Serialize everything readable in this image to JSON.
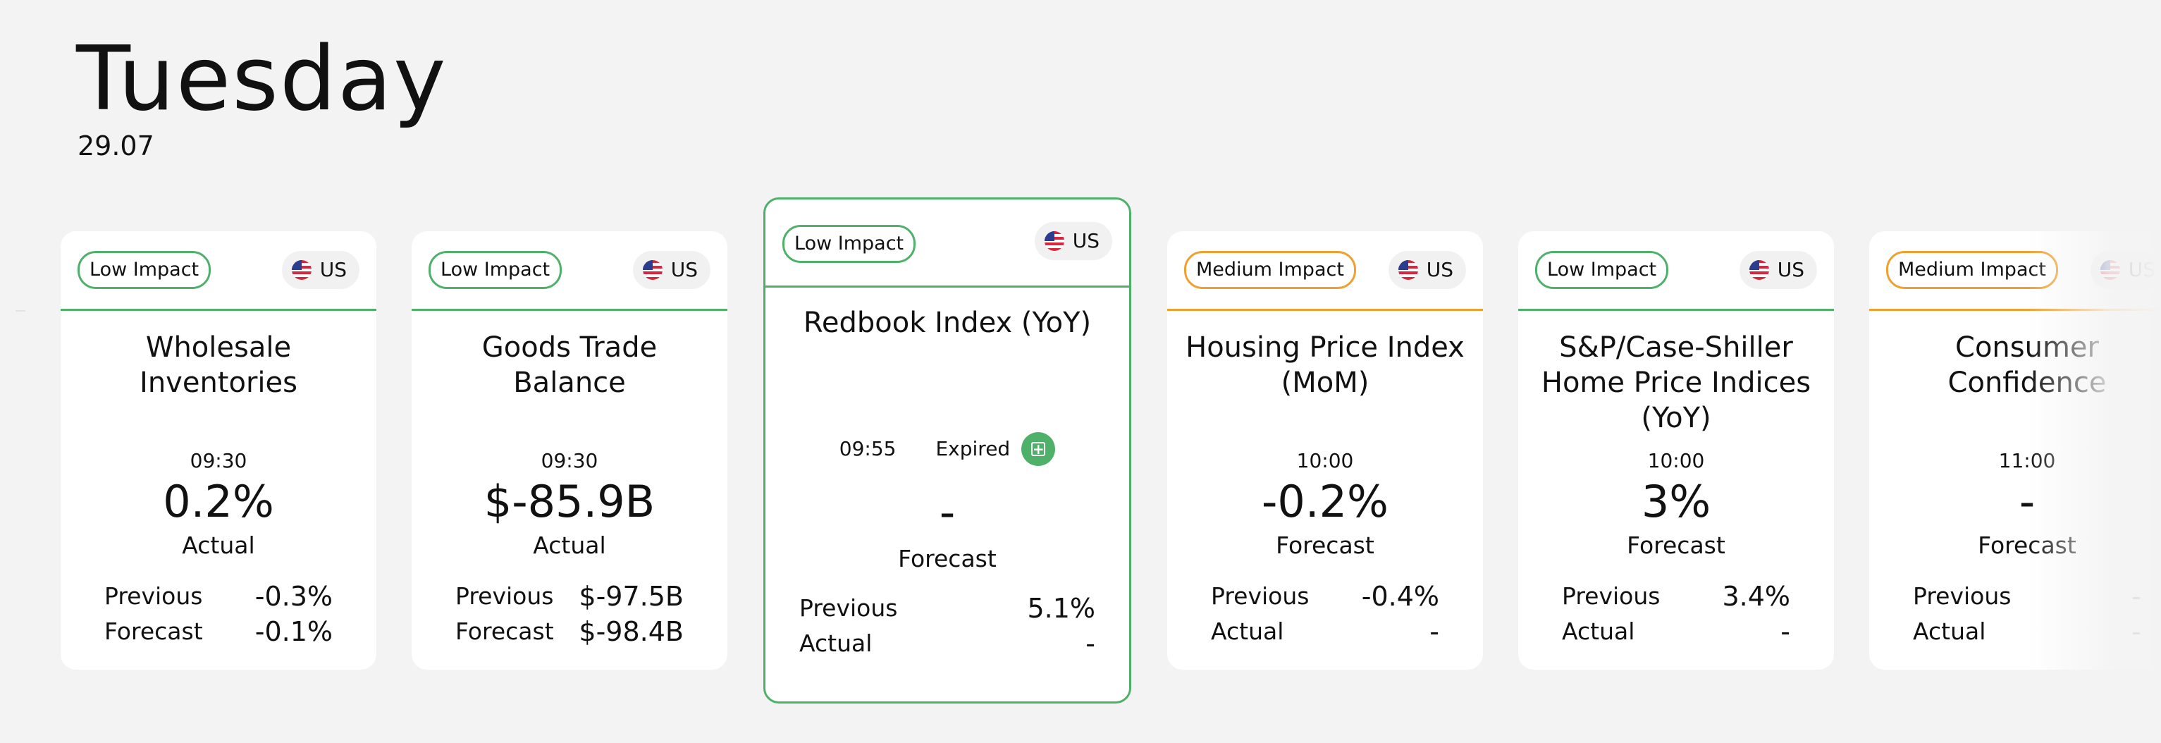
{
  "header": {
    "day": "Tuesday",
    "date": "29.07"
  },
  "colors": {
    "low_impact": "#4fb06a",
    "medium_impact": "#f0a030",
    "background": "#f3f3f3"
  },
  "cards": [
    {
      "impact": "Low Impact",
      "country": "US",
      "title": "Wholesale Inventories",
      "time": "09:30",
      "value": "0.2%",
      "value_label": "Actual",
      "rows": [
        {
          "label": "Previous",
          "value": "-0.3%"
        },
        {
          "label": "Forecast",
          "value": "-0.1%"
        }
      ]
    },
    {
      "impact": "Low Impact",
      "country": "US",
      "title": "Goods Trade Balance",
      "time": "09:30",
      "value": "$-85.9B",
      "value_label": "Actual",
      "rows": [
        {
          "label": "Previous",
          "value": "$-97.5B"
        },
        {
          "label": "Forecast",
          "value": "$-98.4B"
        }
      ]
    },
    {
      "impact": "Low Impact",
      "country": "US",
      "title": "Redbook Index (YoY)",
      "time": "09:55",
      "status": "Expired",
      "value": "-",
      "value_label": "Forecast",
      "rows": [
        {
          "label": "Previous",
          "value": "5.1%"
        },
        {
          "label": "Actual",
          "value": "-"
        }
      ]
    },
    {
      "impact": "Medium Impact",
      "country": "US",
      "title": "Housing Price Index (MoM)",
      "time": "10:00",
      "value": "-0.2%",
      "value_label": "Forecast",
      "rows": [
        {
          "label": "Previous",
          "value": "-0.4%"
        },
        {
          "label": "Actual",
          "value": "-"
        }
      ]
    },
    {
      "impact": "Low Impact",
      "country": "US",
      "title": "S&P/Case-Shiller Home Price Indices (YoY)",
      "time": "10:00",
      "value": "3%",
      "value_label": "Forecast",
      "rows": [
        {
          "label": "Previous",
          "value": "3.4%"
        },
        {
          "label": "Actual",
          "value": "-"
        }
      ]
    },
    {
      "impact": "Medium Impact",
      "country": "US",
      "title": "Consumer Confidence",
      "time": "11:00",
      "value": "-",
      "value_label": "Forecast",
      "rows": [
        {
          "label": "Previous",
          "value": "-"
        },
        {
          "label": "Actual",
          "value": "-"
        }
      ]
    }
  ]
}
